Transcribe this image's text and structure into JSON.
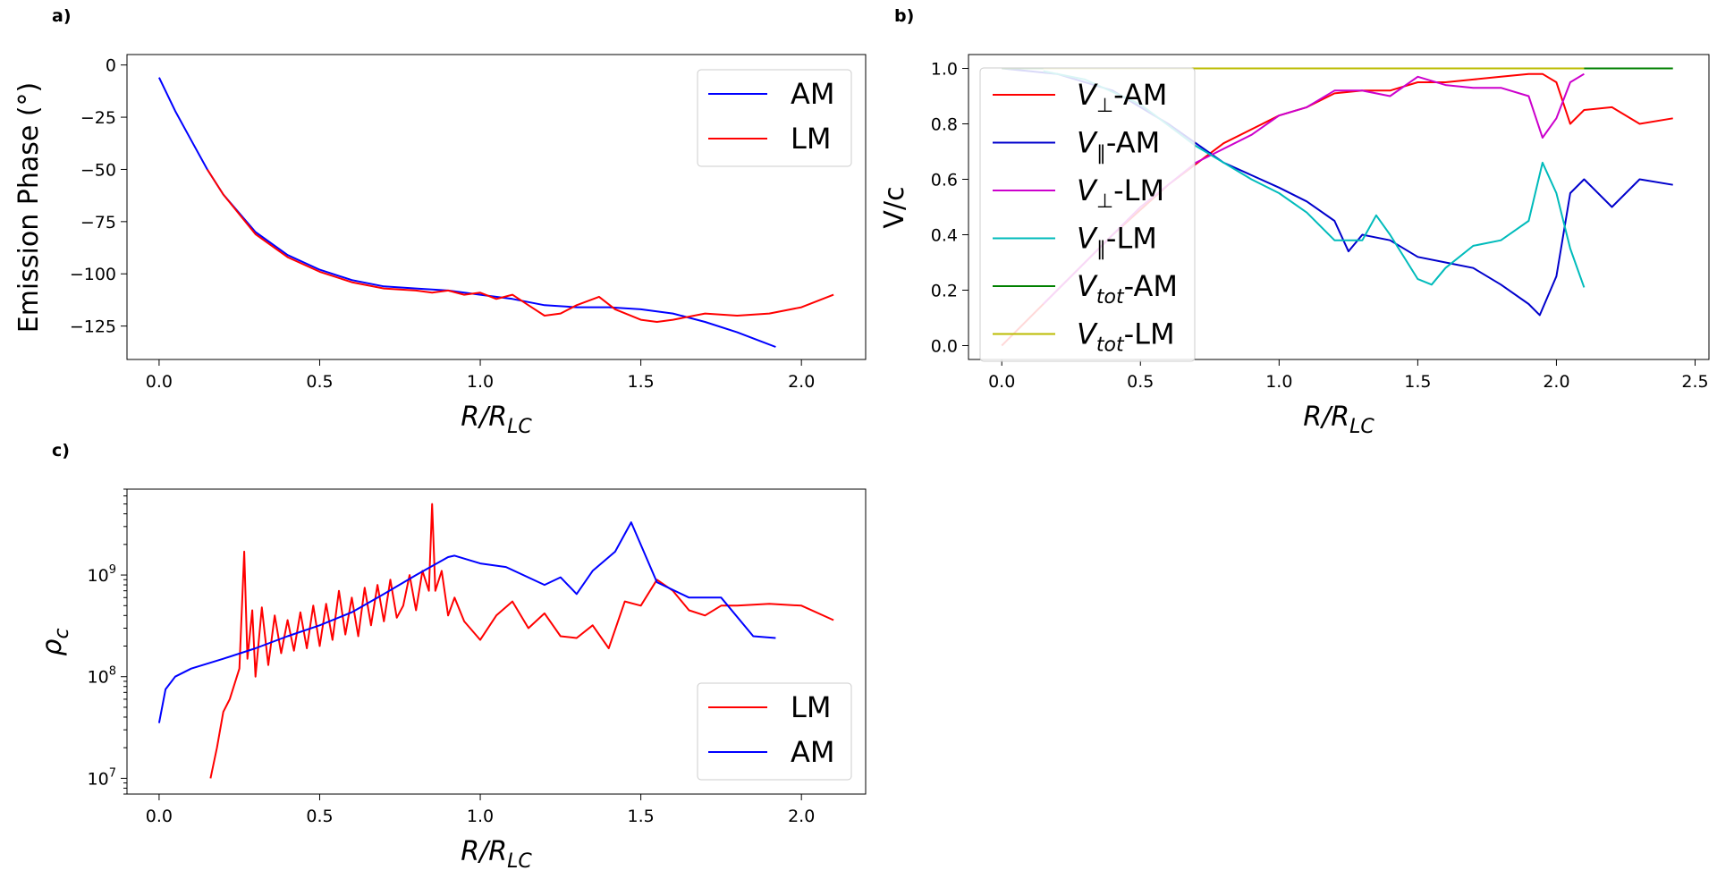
{
  "chart_data": [
    {
      "panel": "a)",
      "type": "line",
      "xlabel_main": "R/R",
      "xlabel_sub": "LC",
      "ylabel": "Emission Phase (°)",
      "xlim": [
        -0.1,
        2.2
      ],
      "ylim": [
        -141,
        5
      ],
      "xticks": [
        0.0,
        0.5,
        1.0,
        1.5,
        2.0
      ],
      "xtick_labels": [
        "0.0",
        "0.5",
        "1.0",
        "1.5",
        "2.0"
      ],
      "yticks": [
        0,
        -25,
        -50,
        -75,
        -100,
        -125
      ],
      "ytick_labels": [
        "0",
        "−25",
        "−50",
        "−75",
        "−100",
        "−125"
      ],
      "legend": "top-right",
      "series": [
        {
          "name": "AM",
          "color": "#0000ff",
          "x": [
            0.0,
            0.05,
            0.1,
            0.15,
            0.2,
            0.3,
            0.4,
            0.5,
            0.6,
            0.7,
            0.8,
            0.9,
            1.0,
            1.1,
            1.2,
            1.3,
            1.4,
            1.5,
            1.6,
            1.7,
            1.8,
            1.92
          ],
          "y": [
            -6,
            -22,
            -36,
            -50,
            -62,
            -80,
            -91,
            -98,
            -103,
            -106,
            -107,
            -108,
            -110,
            -112,
            -115,
            -116,
            -116,
            -117,
            -119,
            -123,
            -128,
            -135
          ]
        },
        {
          "name": "LM",
          "color": "#ff0000",
          "x": [
            0.15,
            0.2,
            0.3,
            0.4,
            0.5,
            0.6,
            0.7,
            0.8,
            0.85,
            0.9,
            0.95,
            1.0,
            1.05,
            1.1,
            1.15,
            1.2,
            1.25,
            1.3,
            1.37,
            1.42,
            1.5,
            1.55,
            1.6,
            1.7,
            1.8,
            1.9,
            2.0,
            2.1
          ],
          "y": [
            -50,
            -62,
            -81,
            -92,
            -99,
            -104,
            -107,
            -108,
            -109,
            -108,
            -110,
            -109,
            -112,
            -110,
            -115,
            -120,
            -119,
            -115,
            -111,
            -117,
            -122,
            -123,
            -122,
            -119,
            -120,
            -119,
            -116,
            -110
          ]
        }
      ]
    },
    {
      "panel": "b)",
      "type": "line",
      "xlabel_main": "R/R",
      "xlabel_sub": "LC",
      "ylabel": "V/c",
      "xlim": [
        -0.12,
        2.55
      ],
      "ylim": [
        -0.05,
        1.05
      ],
      "xticks": [
        0.0,
        0.5,
        1.0,
        1.5,
        2.0,
        2.5
      ],
      "xtick_labels": [
        "0.0",
        "0.5",
        "1.0",
        "1.5",
        "2.0",
        "2.5"
      ],
      "yticks": [
        0.0,
        0.2,
        0.4,
        0.6,
        0.8,
        1.0
      ],
      "ytick_labels": [
        "0.0",
        "0.2",
        "0.4",
        "0.6",
        "0.8",
        "1.0"
      ],
      "legend": "top-left",
      "series": [
        {
          "name": "V⊥-AM",
          "label_main": "V",
          "label_sub": "⊥",
          "label_rest": "-AM",
          "color": "#ff0000",
          "x": [
            0.0,
            0.2,
            0.4,
            0.6,
            0.8,
            1.0,
            1.1,
            1.2,
            1.3,
            1.4,
            1.5,
            1.6,
            1.7,
            1.8,
            1.9,
            1.95,
            2.0,
            2.05,
            2.1,
            2.2,
            2.3,
            2.42
          ],
          "y": [
            0.0,
            0.2,
            0.4,
            0.58,
            0.73,
            0.83,
            0.86,
            0.91,
            0.92,
            0.92,
            0.95,
            0.95,
            0.96,
            0.97,
            0.98,
            0.98,
            0.95,
            0.8,
            0.85,
            0.86,
            0.8,
            0.82
          ]
        },
        {
          "name": "V∥-AM",
          "label_main": "V",
          "label_sub": "∥",
          "label_rest": "-AM",
          "color": "#0000cc",
          "x": [
            0.0,
            0.2,
            0.4,
            0.6,
            0.8,
            1.0,
            1.1,
            1.2,
            1.25,
            1.3,
            1.4,
            1.5,
            1.6,
            1.7,
            1.8,
            1.9,
            1.94,
            2.0,
            2.05,
            2.1,
            2.2,
            2.3,
            2.42
          ],
          "y": [
            1.0,
            0.98,
            0.92,
            0.8,
            0.66,
            0.57,
            0.52,
            0.45,
            0.34,
            0.4,
            0.38,
            0.32,
            0.3,
            0.28,
            0.22,
            0.15,
            0.11,
            0.25,
            0.55,
            0.6,
            0.5,
            0.6,
            0.58
          ]
        },
        {
          "name": "V⊥-LM",
          "label_main": "V",
          "label_sub": "⊥",
          "label_rest": "-LM",
          "color": "#cc00cc",
          "x": [
            0.15,
            0.3,
            0.5,
            0.7,
            0.9,
            1.0,
            1.1,
            1.2,
            1.3,
            1.4,
            1.5,
            1.6,
            1.7,
            1.8,
            1.9,
            1.95,
            2.0,
            2.05,
            2.1
          ],
          "y": [
            0.15,
            0.3,
            0.5,
            0.66,
            0.76,
            0.83,
            0.86,
            0.92,
            0.92,
            0.9,
            0.97,
            0.94,
            0.93,
            0.93,
            0.9,
            0.75,
            0.82,
            0.95,
            0.98
          ]
        },
        {
          "name": "V∥-LM",
          "label_main": "V",
          "label_sub": "∥",
          "label_rest": "-LM",
          "color": "#00bbbb",
          "x": [
            0.15,
            0.3,
            0.5,
            0.7,
            0.9,
            1.0,
            1.1,
            1.2,
            1.3,
            1.35,
            1.4,
            1.5,
            1.55,
            1.6,
            1.7,
            1.8,
            1.9,
            1.95,
            2.0,
            2.05,
            2.1
          ],
          "y": [
            0.99,
            0.96,
            0.87,
            0.72,
            0.6,
            0.55,
            0.48,
            0.38,
            0.38,
            0.47,
            0.4,
            0.24,
            0.22,
            0.28,
            0.36,
            0.38,
            0.45,
            0.66,
            0.55,
            0.35,
            0.21
          ]
        },
        {
          "name": "Vtot-AM",
          "label_main": "V",
          "label_sub": "tot",
          "label_rest": "-AM",
          "color": "#008000",
          "x": [
            0.0,
            2.42
          ],
          "y": [
            1.0,
            1.0
          ]
        },
        {
          "name": "Vtot-LM",
          "label_main": "V",
          "label_sub": "tot",
          "label_rest": "-LM",
          "color": "#bbbb00",
          "x": [
            0.15,
            2.1
          ],
          "y": [
            1.0,
            1.0
          ]
        }
      ]
    },
    {
      "panel": "c)",
      "type": "line",
      "yscale": "log",
      "xlabel_main": "R/R",
      "xlabel_sub": "LC",
      "ylabel_main": "ρ",
      "ylabel_sub": "c",
      "xlim": [
        -0.1,
        2.2
      ],
      "ylim": [
        7000000.0,
        7000000000.0
      ],
      "xticks": [
        0.0,
        0.5,
        1.0,
        1.5,
        2.0
      ],
      "xtick_labels": [
        "0.0",
        "0.5",
        "1.0",
        "1.5",
        "2.0"
      ],
      "yticks": [
        10000000,
        100000000,
        1000000000
      ],
      "ytick_bases": [
        "10",
        "10",
        "10"
      ],
      "ytick_exps": [
        "7",
        "8",
        "9"
      ],
      "legend": "bottom-right",
      "series": [
        {
          "name": "LM",
          "color": "#ff0000",
          "x": [
            0.16,
            0.18,
            0.2,
            0.22,
            0.25,
            0.265,
            0.275,
            0.29,
            0.3,
            0.32,
            0.34,
            0.36,
            0.38,
            0.4,
            0.42,
            0.44,
            0.46,
            0.48,
            0.5,
            0.52,
            0.54,
            0.56,
            0.58,
            0.6,
            0.62,
            0.64,
            0.66,
            0.68,
            0.7,
            0.72,
            0.74,
            0.76,
            0.78,
            0.8,
            0.82,
            0.84,
            0.85,
            0.86,
            0.88,
            0.9,
            0.92,
            0.95,
            1.0,
            1.05,
            1.1,
            1.15,
            1.2,
            1.25,
            1.3,
            1.35,
            1.4,
            1.45,
            1.5,
            1.55,
            1.6,
            1.65,
            1.7,
            1.75,
            1.8,
            1.9,
            2.0,
            2.1
          ],
          "y": [
            10000000,
            20000000,
            45000000,
            60000000,
            120000000,
            1700000000,
            150000000,
            450000000,
            100000000,
            480000000,
            130000000,
            400000000,
            170000000,
            360000000,
            180000000,
            430000000,
            190000000,
            500000000,
            200000000,
            520000000,
            230000000,
            700000000,
            260000000,
            600000000,
            250000000,
            750000000,
            320000000,
            800000000,
            350000000,
            900000000,
            380000000,
            500000000,
            1000000000,
            450000000,
            1100000000,
            700000000,
            5000000000,
            700000000,
            1100000000,
            400000000,
            600000000,
            350000000,
            230000000,
            400000000,
            550000000,
            300000000,
            420000000,
            250000000,
            240000000,
            320000000,
            190000000,
            550000000,
            500000000,
            900000000,
            700000000,
            450000000,
            400000000,
            500000000,
            500000000,
            520000000,
            500000000,
            360000000
          ]
        },
        {
          "name": "AM",
          "color": "#0000ff",
          "x": [
            0.0,
            0.02,
            0.05,
            0.1,
            0.2,
            0.3,
            0.4,
            0.5,
            0.6,
            0.7,
            0.8,
            0.9,
            0.92,
            1.0,
            1.08,
            1.2,
            1.25,
            1.3,
            1.35,
            1.42,
            1.47,
            1.55,
            1.65,
            1.75,
            1.85,
            1.92
          ],
          "y": [
            35000000,
            75000000,
            100000000,
            120000000,
            150000000,
            190000000,
            250000000,
            320000000,
            430000000,
            650000000,
            1000000000,
            1500000000,
            1550000000,
            1300000000,
            1200000000,
            800000000,
            950000000,
            650000000,
            1100000000,
            1700000000,
            3300000000,
            850000000,
            600000000,
            600000000,
            250000000,
            240000000
          ]
        }
      ]
    }
  ]
}
